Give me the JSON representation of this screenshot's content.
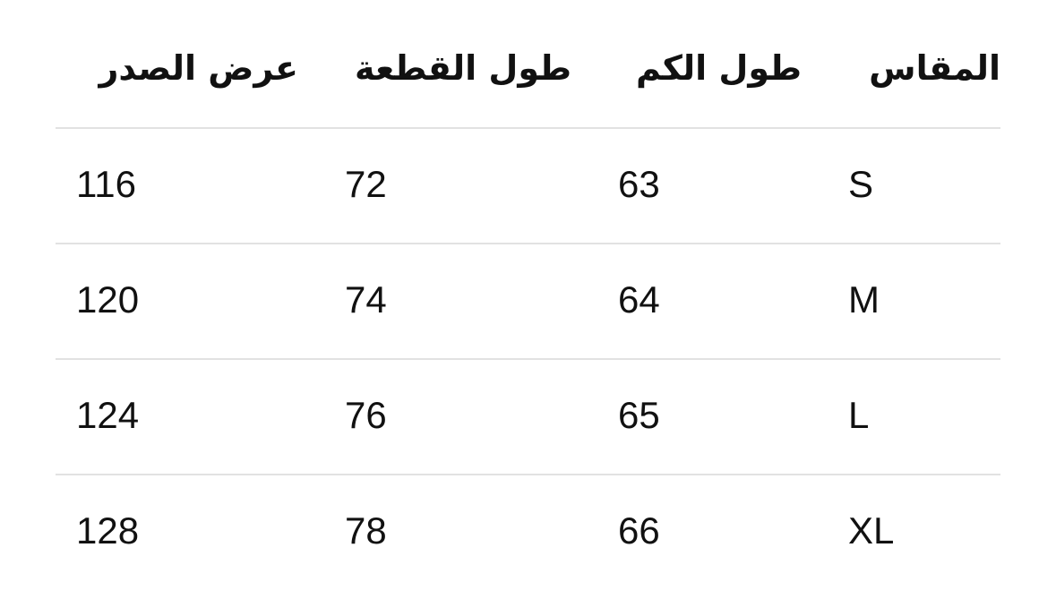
{
  "table": {
    "headers": [
      "المقاس",
      "طول الكم",
      "طول القطعة",
      "عرض الصدر"
    ],
    "rows": [
      [
        "S",
        "63",
        "72",
        "116"
      ],
      [
        "M",
        "64",
        "74",
        "120"
      ],
      [
        "L",
        "65",
        "76",
        "124"
      ],
      [
        "XL",
        "66",
        "78",
        "128"
      ]
    ]
  }
}
